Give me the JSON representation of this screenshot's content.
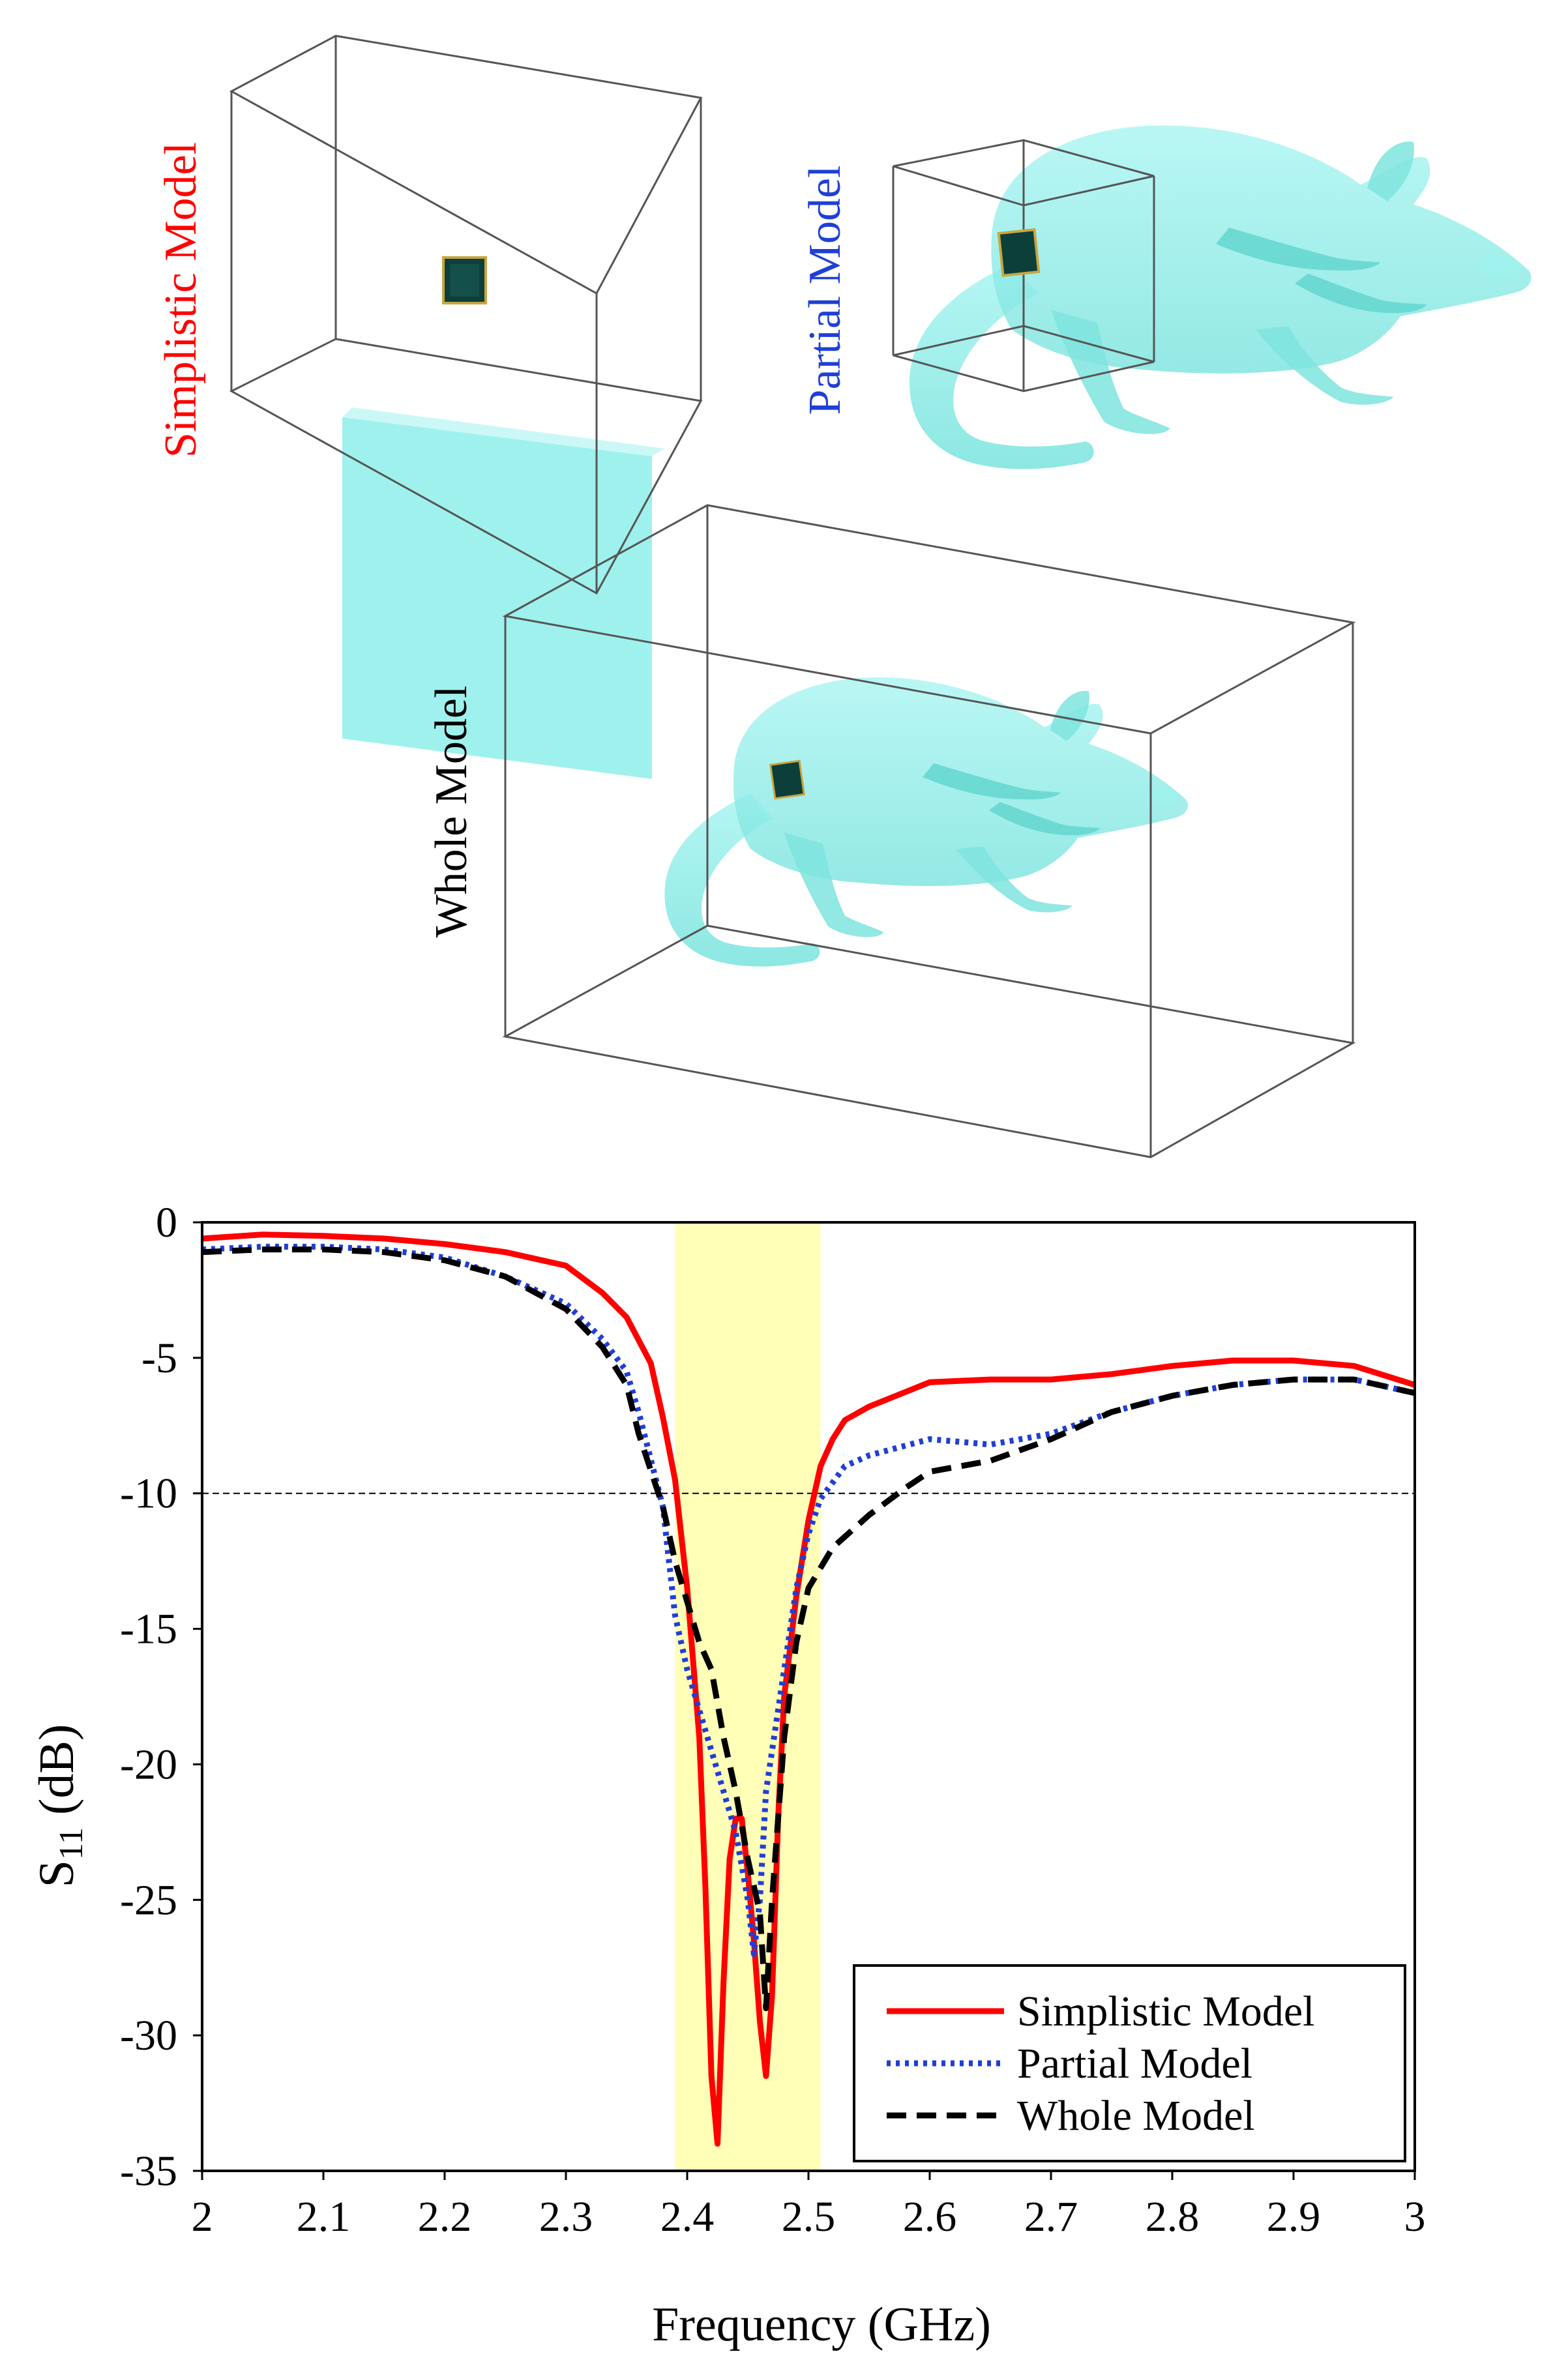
{
  "illustrations": {
    "simplistic_label": "Simplistic Model",
    "partial_label": "Partial Model",
    "whole_label": "Whole Model",
    "colors": {
      "simplistic": "#ff0000",
      "partial": "#1f3fd6",
      "whole": "#000000",
      "tissue": "#8eeeea",
      "box_line": "#555555",
      "implant": "#0d3f3a"
    }
  },
  "chart_data": {
    "type": "line",
    "title": "",
    "xlabel": "Frequency (GHz)",
    "ylabel_main": "S",
    "ylabel_sub": "11",
    "ylabel_rest": " (dB)",
    "xlim": [
      2,
      3
    ],
    "ylim": [
      -35,
      0
    ],
    "xticks": [
      2,
      2.1,
      2.2,
      2.3,
      2.4,
      2.5,
      2.6,
      2.7,
      2.8,
      2.9,
      3
    ],
    "xtick_labels": [
      "2",
      "2.1",
      "2.2",
      "2.3",
      "2.4",
      "2.5",
      "2.6",
      "2.7",
      "2.8",
      "2.9",
      "3"
    ],
    "yticks": [
      0,
      -5,
      -10,
      -15,
      -20,
      -25,
      -30,
      -35
    ],
    "ytick_labels": [
      "0",
      "-5",
      "-10",
      "-15",
      "-20",
      "-25",
      "-30",
      "-35"
    ],
    "reference_line": {
      "y": -10,
      "style": "dashed"
    },
    "highlight_band": {
      "x0": 2.39,
      "x1": 2.51,
      "color": "#ffffb8"
    },
    "legend_position": "bottom-right",
    "series": [
      {
        "name": "Simplistic Model",
        "color": "#ff0000",
        "dash": "solid",
        "points": [
          [
            2.0,
            -0.6
          ],
          [
            2.05,
            -0.45
          ],
          [
            2.1,
            -0.5
          ],
          [
            2.15,
            -0.6
          ],
          [
            2.2,
            -0.8
          ],
          [
            2.25,
            -1.1
          ],
          [
            2.3,
            -1.6
          ],
          [
            2.33,
            -2.6
          ],
          [
            2.35,
            -3.5
          ],
          [
            2.37,
            -5.2
          ],
          [
            2.38,
            -7.2
          ],
          [
            2.39,
            -9.5
          ],
          [
            2.4,
            -13.5
          ],
          [
            2.41,
            -19.0
          ],
          [
            2.415,
            -24.5
          ],
          [
            2.42,
            -31.5
          ],
          [
            2.425,
            -34.0
          ],
          [
            2.43,
            -28.0
          ],
          [
            2.435,
            -23.5
          ],
          [
            2.44,
            -22.0
          ],
          [
            2.445,
            -22.0
          ],
          [
            2.45,
            -24.0
          ],
          [
            2.455,
            -26.5
          ],
          [
            2.46,
            -29.5
          ],
          [
            2.465,
            -31.5
          ],
          [
            2.47,
            -28.5
          ],
          [
            2.475,
            -22.0
          ],
          [
            2.48,
            -17.5
          ],
          [
            2.49,
            -13.8
          ],
          [
            2.5,
            -11.0
          ],
          [
            2.51,
            -9.0
          ],
          [
            2.52,
            -8.0
          ],
          [
            2.53,
            -7.3
          ],
          [
            2.55,
            -6.8
          ],
          [
            2.6,
            -5.9
          ],
          [
            2.65,
            -5.8
          ],
          [
            2.7,
            -5.8
          ],
          [
            2.75,
            -5.6
          ],
          [
            2.8,
            -5.3
          ],
          [
            2.85,
            -5.1
          ],
          [
            2.9,
            -5.1
          ],
          [
            2.95,
            -5.3
          ],
          [
            3.0,
            -6.0
          ]
        ]
      },
      {
        "name": "Partial Model",
        "color": "#1f3fd6",
        "dash": "dotted",
        "points": [
          [
            2.0,
            -1.0
          ],
          [
            2.05,
            -0.9
          ],
          [
            2.1,
            -0.9
          ],
          [
            2.15,
            -1.0
          ],
          [
            2.2,
            -1.3
          ],
          [
            2.25,
            -2.0
          ],
          [
            2.3,
            -3.0
          ],
          [
            2.33,
            -4.3
          ],
          [
            2.35,
            -5.5
          ],
          [
            2.36,
            -7.0
          ],
          [
            2.38,
            -10.5
          ],
          [
            2.39,
            -14.5
          ],
          [
            2.4,
            -16.5
          ],
          [
            2.41,
            -18.0
          ],
          [
            2.42,
            -19.5
          ],
          [
            2.43,
            -21.0
          ],
          [
            2.44,
            -22.5
          ],
          [
            2.45,
            -25.0
          ],
          [
            2.455,
            -27.0
          ],
          [
            2.46,
            -25.0
          ],
          [
            2.465,
            -21.0
          ],
          [
            2.47,
            -19.5
          ],
          [
            2.48,
            -16.5
          ],
          [
            2.49,
            -13.5
          ],
          [
            2.5,
            -11.5
          ],
          [
            2.51,
            -10.2
          ],
          [
            2.53,
            -9.0
          ],
          [
            2.55,
            -8.6
          ],
          [
            2.6,
            -8.0
          ],
          [
            2.65,
            -8.2
          ],
          [
            2.7,
            -7.8
          ],
          [
            2.75,
            -7.0
          ],
          [
            2.8,
            -6.4
          ],
          [
            2.85,
            -6.0
          ],
          [
            2.9,
            -5.8
          ],
          [
            2.95,
            -5.8
          ],
          [
            3.0,
            -6.3
          ]
        ]
      },
      {
        "name": "Whole Model",
        "color": "#000000",
        "dash": "dashed",
        "points": [
          [
            2.0,
            -1.1
          ],
          [
            2.05,
            -1.0
          ],
          [
            2.1,
            -1.0
          ],
          [
            2.15,
            -1.1
          ],
          [
            2.2,
            -1.4
          ],
          [
            2.25,
            -2.0
          ],
          [
            2.3,
            -3.2
          ],
          [
            2.33,
            -4.6
          ],
          [
            2.35,
            -6.0
          ],
          [
            2.36,
            -7.8
          ],
          [
            2.38,
            -10.5
          ],
          [
            2.39,
            -12.5
          ],
          [
            2.4,
            -14.0
          ],
          [
            2.41,
            -15.5
          ],
          [
            2.42,
            -16.5
          ],
          [
            2.43,
            -19.0
          ],
          [
            2.44,
            -21.0
          ],
          [
            2.45,
            -23.5
          ],
          [
            2.46,
            -25.5
          ],
          [
            2.465,
            -29.0
          ],
          [
            2.47,
            -25.0
          ],
          [
            2.475,
            -22.0
          ],
          [
            2.48,
            -19.0
          ],
          [
            2.49,
            -15.5
          ],
          [
            2.5,
            -13.5
          ],
          [
            2.52,
            -12.0
          ],
          [
            2.55,
            -10.8
          ],
          [
            2.58,
            -9.8
          ],
          [
            2.6,
            -9.2
          ],
          [
            2.65,
            -8.8
          ],
          [
            2.7,
            -8.0
          ],
          [
            2.75,
            -7.0
          ],
          [
            2.8,
            -6.4
          ],
          [
            2.85,
            -6.0
          ],
          [
            2.9,
            -5.8
          ],
          [
            2.95,
            -5.8
          ],
          [
            3.0,
            -6.3
          ]
        ]
      }
    ]
  }
}
